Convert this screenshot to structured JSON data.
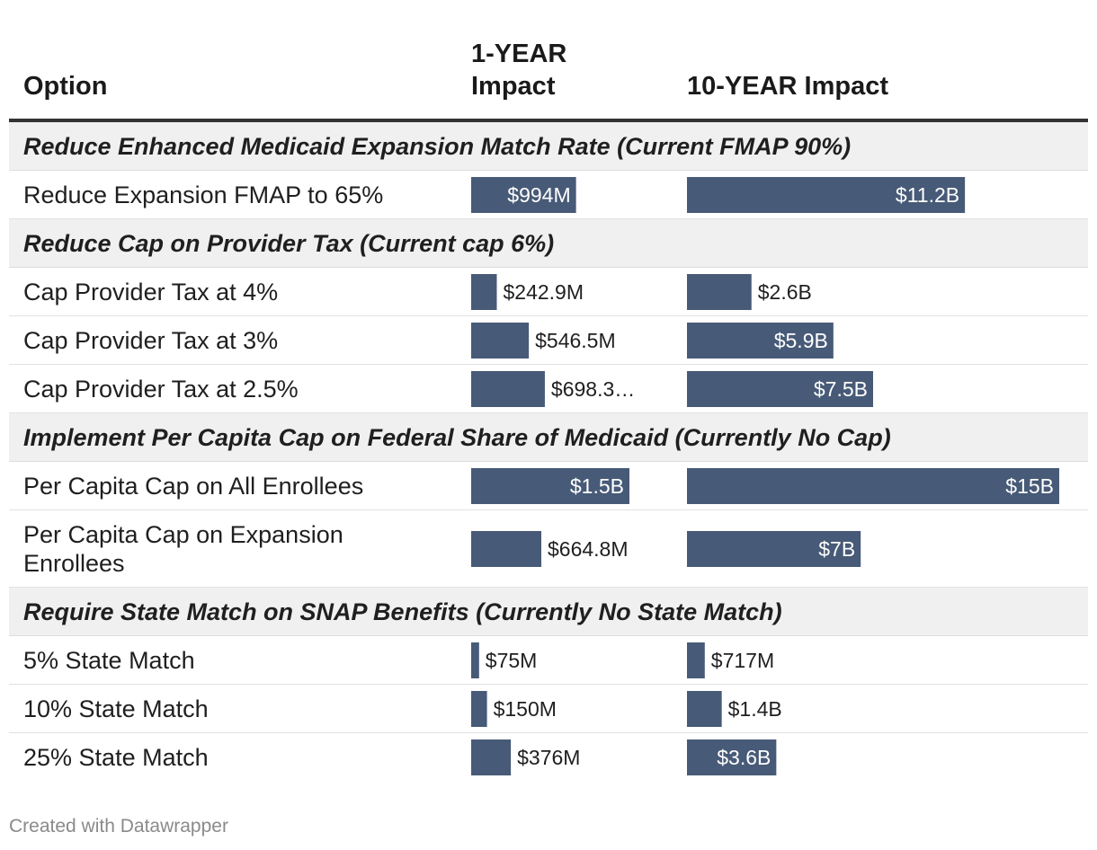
{
  "chart_data": {
    "type": "table",
    "bar_color": "#475a77",
    "columns": [
      "Option",
      "1-YEAR Impact",
      "10-YEAR Impact"
    ],
    "column_units": "US dollars",
    "scale_max": {
      "one": 1.5,
      "ten": 15
    },
    "groups": [
      {
        "title": "Reduce Enhanced Medicaid Expansion Match Rate (Current FMAP 90%)",
        "rows": [
          {
            "option": "Reduce Expansion FMAP to 65%",
            "one": 0.994,
            "one_label": "$994M",
            "ten": 11.2,
            "ten_label": "$11.2B"
          }
        ]
      },
      {
        "title": "Reduce Cap on Provider Tax (Current cap 6%)",
        "rows": [
          {
            "option": "Cap Provider Tax at 4%",
            "one": 0.2429,
            "one_label": "$242.9M",
            "ten": 2.6,
            "ten_label": "$2.6B"
          },
          {
            "option": "Cap Provider Tax at 3%",
            "one": 0.5465,
            "one_label": "$546.5M",
            "ten": 5.9,
            "ten_label": "$5.9B"
          },
          {
            "option": "Cap Provider Tax at 2.5%",
            "one": 0.6983,
            "one_label": "$698.3…",
            "ten": 7.5,
            "ten_label": "$7.5B"
          }
        ]
      },
      {
        "title": "Implement Per Capita Cap on Federal Share of Medicaid (Currently No Cap)",
        "rows": [
          {
            "option": "Per Capita Cap on All Enrollees",
            "one": 1.5,
            "one_label": "$1.5B",
            "ten": 15,
            "ten_label": "$15B"
          },
          {
            "option": "Per Capita Cap on Expansion Enrollees",
            "one": 0.6648,
            "one_label": "$664.8M",
            "ten": 7,
            "ten_label": "$7B"
          }
        ]
      },
      {
        "title": "Require State Match on SNAP Benefits (Currently No State Match)",
        "rows": [
          {
            "option": "5% State Match",
            "one": 0.075,
            "one_label": "$75M",
            "ten": 0.717,
            "ten_label": "$717M"
          },
          {
            "option": "10% State Match",
            "one": 0.15,
            "one_label": "$150M",
            "ten": 1.4,
            "ten_label": "$1.4B"
          },
          {
            "option": "25% State Match",
            "one": 0.376,
            "one_label": "$376M",
            "ten": 3.6,
            "ten_label": "$3.6B"
          }
        ]
      }
    ]
  },
  "header": {
    "option": "Option",
    "one_year": "1-YEAR Impact",
    "ten_year": "10-YEAR Impact"
  },
  "footer": {
    "credit": "Created with Datawrapper"
  }
}
